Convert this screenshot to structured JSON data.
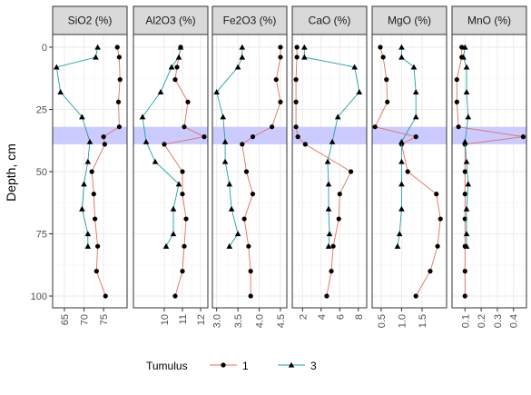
{
  "chart_data": {
    "type": "line",
    "ylabel": "Depth, cm",
    "y_axis_reversed": true,
    "ylim": [
      0,
      100
    ],
    "yticks": [
      0,
      25,
      50,
      75,
      100
    ],
    "highlight_band": {
      "from": 32,
      "to": 39,
      "color": "#c8c8ff"
    },
    "legend": {
      "title": "Tumulus",
      "position": "bottom",
      "entries": [
        "1",
        "3"
      ]
    },
    "series_style": {
      "1": {
        "color": "#e07060",
        "marker": "circle"
      },
      "3": {
        "color": "#20a0a0",
        "marker": "triangle"
      }
    },
    "panels": [
      {
        "title": "SiO2 (%)",
        "xlim": [
          62,
          81
        ],
        "xticks": [
          65,
          70,
          75
        ],
        "xtick_labels": [
          "65",
          "70",
          "75"
        ],
        "series": [
          {
            "name": "1",
            "depth": [
              0,
              4,
              13,
              22,
              32,
              36,
              39,
              50,
              59,
              69,
              80,
              90,
              100
            ],
            "values": [
              78.5,
              79,
              79.2,
              78.8,
              79,
              75,
              75.3,
              72,
              72.5,
              72.8,
              73.5,
              73.2,
              75.5
            ]
          },
          {
            "name": "3",
            "depth": [
              0,
              4,
              8,
              18,
              28,
              38,
              46,
              55,
              65,
              75,
              80
            ],
            "values": [
              73.5,
              73,
              63,
              64,
              69.5,
              71.5,
              71,
              70,
              69.5,
              71,
              71
            ]
          }
        ]
      },
      {
        "title": "Al2O3 (%)",
        "xlim": [
          8.3,
          12.4
        ],
        "xticks": [
          10,
          11,
          12
        ],
        "xtick_labels": [
          "10",
          "11",
          "12"
        ],
        "series": [
          {
            "name": "1",
            "depth": [
              0,
              8,
              13,
              22,
              32,
              36,
              39,
              50,
              59,
              69,
              80,
              90,
              100
            ],
            "values": [
              10.9,
              10.7,
              10.6,
              11.3,
              11.1,
              12.2,
              10,
              11,
              11,
              11.2,
              11.1,
              11,
              10.6
            ]
          },
          {
            "name": "3",
            "depth": [
              0,
              4,
              8,
              18,
              28,
              38,
              46,
              55,
              65,
              75,
              80
            ],
            "values": [
              10.9,
              10.8,
              10.4,
              9.8,
              8.8,
              9,
              9.5,
              10.8,
              10.5,
              10.5,
              10.1
            ]
          }
        ]
      },
      {
        "title": "Fe2O3 (%)",
        "xlim": [
          2.9,
          4.65
        ],
        "xticks": [
          3.0,
          3.5,
          4.0,
          4.5
        ],
        "xtick_labels": [
          "3.0",
          "3.5",
          "4.0",
          "4.5"
        ],
        "series": [
          {
            "name": "1",
            "depth": [
              0,
              4,
              13,
              22,
              32,
              36,
              39,
              50,
              59,
              69,
              80,
              90,
              100
            ],
            "values": [
              4.5,
              4.5,
              4.4,
              4.5,
              4.3,
              3.85,
              3.6,
              3.7,
              3.85,
              3.65,
              3.75,
              3.8,
              3.8
            ]
          },
          {
            "name": "3",
            "depth": [
              0,
              4,
              8,
              18,
              28,
              38,
              46,
              55,
              65,
              75,
              80
            ],
            "values": [
              3.6,
              3.6,
              3.5,
              3.0,
              3.15,
              3.2,
              3.2,
              3.3,
              3.35,
              3.5,
              3.3
            ]
          }
        ]
      },
      {
        "title": "CaO (%)",
        "xlim": [
          0.9,
          8.9
        ],
        "xticks": [
          2,
          4,
          6,
          8
        ],
        "xtick_labels": [
          "2",
          "4",
          "6",
          "8"
        ],
        "series": [
          {
            "name": "1",
            "depth": [
              0,
              4,
              13,
              22,
              32,
              36,
              39,
              50,
              59,
              69,
              80,
              90,
              100
            ],
            "values": [
              1.4,
              1.4,
              1.3,
              1.3,
              1.3,
              1.5,
              2.3,
              7.2,
              6,
              5.9,
              5.3,
              5.1,
              4.6
            ]
          },
          {
            "name": "3",
            "depth": [
              0,
              4,
              8,
              18,
              28,
              38,
              46,
              55,
              65,
              75,
              80
            ],
            "values": [
              2.2,
              2.2,
              7.6,
              8.1,
              5.8,
              5.2,
              4.7,
              4.8,
              4.8,
              4.9,
              4.8
            ]
          }
        ]
      },
      {
        "title": "MgO (%)",
        "xlim": [
          0.28,
          2.1
        ],
        "xticks": [
          0.5,
          1.0,
          1.5
        ],
        "xtick_labels": [
          "0.5",
          "1.0",
          "1.5"
        ],
        "series": [
          {
            "name": "1",
            "depth": [
              0,
              4,
              13,
              22,
              32,
              36,
              39,
              50,
              59,
              69,
              80,
              90,
              100
            ],
            "values": [
              0.48,
              0.55,
              0.63,
              0.65,
              0.35,
              1.35,
              1.0,
              1.15,
              1.85,
              1.95,
              1.88,
              1.7,
              1.35
            ]
          },
          {
            "name": "3",
            "depth": [
              0,
              4,
              8,
              18,
              28,
              38,
              46,
              55,
              65,
              75,
              80
            ],
            "values": [
              1.0,
              1.0,
              1.3,
              1.35,
              1.35,
              1.0,
              1.0,
              1.0,
              1.0,
              0.95,
              0.9
            ]
          }
        ]
      },
      {
        "title": "MnO (%)",
        "xlim": [
          0.02,
          0.48
        ],
        "xticks": [
          0.1,
          0.2,
          0.3,
          0.4
        ],
        "xtick_labels": [
          "0.1",
          "0.2",
          "0.3",
          "0.4"
        ],
        "series": [
          {
            "name": "1",
            "depth": [
              0,
              4,
              13,
              22,
              32,
              36,
              39,
              50,
              59,
              69,
              80,
              90,
              100
            ],
            "values": [
              0.08,
              0.08,
              0.05,
              0.05,
              0.06,
              0.46,
              0.1,
              0.1,
              0.1,
              0.1,
              0.1,
              0.1,
              0.1
            ]
          },
          {
            "name": "3",
            "depth": [
              0,
              4,
              8,
              18,
              28,
              38,
              46,
              55,
              65,
              75,
              80
            ],
            "values": [
              0.1,
              0.09,
              0.11,
              0.11,
              0.12,
              0.1,
              0.11,
              0.12,
              0.11,
              0.11,
              0.11
            ]
          }
        ]
      }
    ]
  }
}
